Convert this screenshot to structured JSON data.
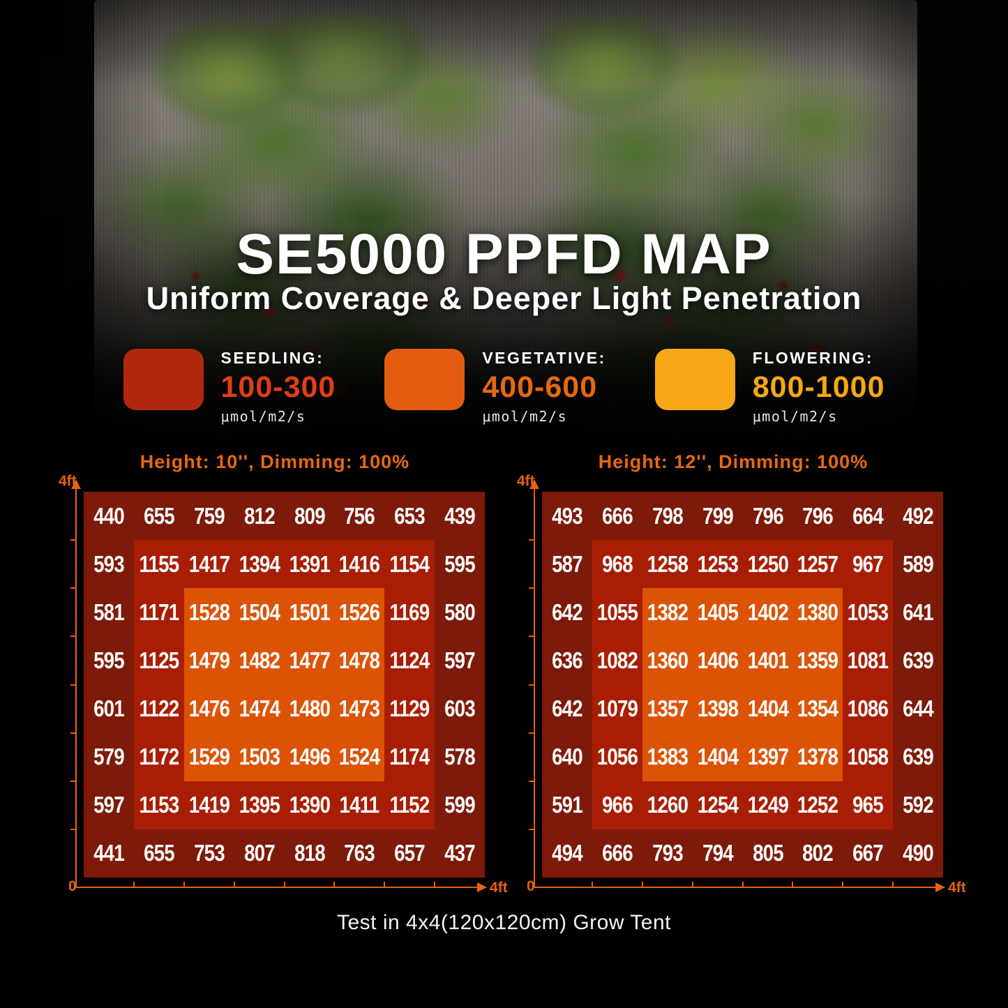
{
  "page": {
    "title": "SE5000 PPFD MAP",
    "subtitle": "Uniform Coverage & Deeper Light Penetration",
    "caption": "Test in 4x4(120x120cm) Grow Tent"
  },
  "legend": {
    "items": [
      {
        "stage": "seedling",
        "label": "SEEDLING:",
        "range": "100-300",
        "unit": "μmol/m2/s",
        "swatch_color": "#b2270e",
        "range_color": "#e23d16"
      },
      {
        "stage": "vegetative",
        "label": "VEGETATIVE:",
        "range": "400-600",
        "unit": "μmol/m2/s",
        "swatch_color": "#e45c10",
        "range_color": "#e8680f"
      },
      {
        "stage": "flowering",
        "label": "FLOWERING:",
        "range": "800-1000",
        "unit": "μmol/m2/s",
        "swatch_color": "#f6a816",
        "range_color": "#f6a816"
      }
    ]
  },
  "colors": {
    "axis": "#e8610f",
    "chart_header": "#e8680f",
    "value_text": "#ffffff",
    "background": "#000000"
  },
  "chart_data": [
    {
      "type": "heatmap",
      "title": "Height: 10'', Dimming: 100%",
      "unit": "μmol/m2/s",
      "grid_size": "8x8",
      "x_axis": {
        "start_label": "0",
        "end_label": "4ft",
        "range_ft": [
          0,
          4
        ]
      },
      "y_axis": {
        "end_label": "4ft",
        "range_ft": [
          0,
          4
        ]
      },
      "rows": [
        [
          440,
          655,
          759,
          812,
          809,
          756,
          653,
          439
        ],
        [
          593,
          1155,
          1417,
          1394,
          1391,
          1416,
          1154,
          595
        ],
        [
          581,
          1171,
          1528,
          1504,
          1501,
          1526,
          1169,
          580
        ],
        [
          595,
          1125,
          1479,
          1482,
          1477,
          1478,
          1124,
          597
        ],
        [
          601,
          1122,
          1476,
          1474,
          1480,
          1473,
          1129,
          603
        ],
        [
          579,
          1172,
          1529,
          1503,
          1496,
          1524,
          1174,
          578
        ],
        [
          597,
          1153,
          1419,
          1395,
          1390,
          1411,
          1152,
          599
        ],
        [
          441,
          655,
          753,
          807,
          818,
          763,
          657,
          437
        ]
      ],
      "zones": {
        "outer_color": "#7d1a09",
        "middle_color": "#a81e05",
        "inner_color": "#dd5306",
        "middle_span": "rows 2-7, cols 2-7",
        "inner_span": "rows 3-6, cols 3-6"
      }
    },
    {
      "type": "heatmap",
      "title": "Height: 12'', Dimming: 100%",
      "unit": "μmol/m2/s",
      "grid_size": "8x8",
      "x_axis": {
        "start_label": "0",
        "end_label": "4ft",
        "range_ft": [
          0,
          4
        ]
      },
      "y_axis": {
        "end_label": "4ft",
        "range_ft": [
          0,
          4
        ]
      },
      "rows": [
        [
          493,
          666,
          798,
          799,
          796,
          796,
          664,
          492
        ],
        [
          587,
          968,
          1258,
          1253,
          1250,
          1257,
          967,
          589
        ],
        [
          642,
          1055,
          1382,
          1405,
          1402,
          1380,
          1053,
          641
        ],
        [
          636,
          1082,
          1360,
          1406,
          1401,
          1359,
          1081,
          639
        ],
        [
          642,
          1079,
          1357,
          1398,
          1404,
          1354,
          1086,
          644
        ],
        [
          640,
          1056,
          1383,
          1404,
          1397,
          1378,
          1058,
          639
        ],
        [
          591,
          966,
          1260,
          1254,
          1249,
          1252,
          965,
          592
        ],
        [
          494,
          666,
          793,
          794,
          805,
          802,
          667,
          490
        ]
      ],
      "zones": {
        "outer_color": "#7d1a09",
        "middle_color": "#a81e05",
        "inner_color": "#dd5306",
        "middle_span": "rows 2-7, cols 2-7",
        "inner_span": "rows 3-6, cols 3-6"
      }
    }
  ]
}
